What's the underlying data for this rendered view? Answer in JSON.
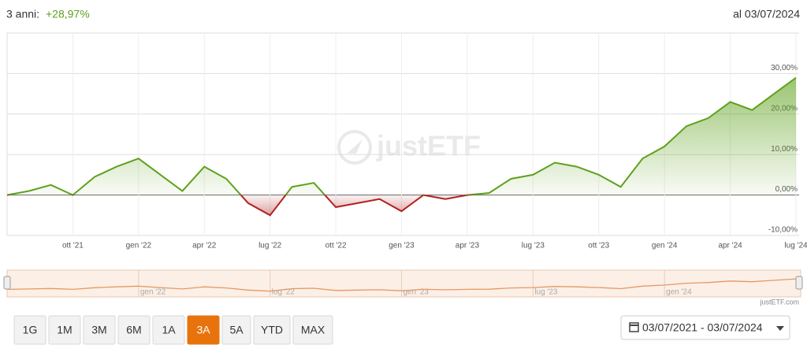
{
  "header": {
    "period_label": "3 anni:",
    "change": "+28,97%",
    "as_of": "al 03/07/2024"
  },
  "chart_data": {
    "type": "line",
    "watermark": "justETF",
    "x": [
      "2021-07",
      "2021-08",
      "2021-09",
      "2021-10",
      "2021-11",
      "2021-12",
      "2022-01",
      "2022-02",
      "2022-03",
      "2022-04",
      "2022-05",
      "2022-06",
      "2022-07",
      "2022-08",
      "2022-09",
      "2022-10",
      "2022-11",
      "2022-12",
      "2023-01",
      "2023-02",
      "2023-03",
      "2023-04",
      "2023-05",
      "2023-06",
      "2023-07",
      "2023-08",
      "2023-09",
      "2023-10",
      "2023-11",
      "2023-12",
      "2024-01",
      "2024-02",
      "2024-03",
      "2024-04",
      "2024-05",
      "2024-06",
      "2024-07"
    ],
    "values": [
      0,
      1,
      2.5,
      0,
      4.5,
      7,
      9,
      5,
      1,
      7,
      4,
      -2,
      -5,
      2,
      3,
      -3,
      -2,
      -1,
      -4,
      0,
      -1,
      0,
      0.5,
      4,
      5,
      8,
      7,
      5,
      2,
      9,
      12,
      17,
      19,
      23,
      21,
      25,
      28.97
    ],
    "color": "#5ea11c",
    "negative_color": "#b22222",
    "xlim": [
      "2021-07",
      "2024-07"
    ],
    "xticks": [
      {
        "value": "2021-10",
        "label": "ott '21"
      },
      {
        "value": "2022-01",
        "label": "gen '22"
      },
      {
        "value": "2022-04",
        "label": "apr '22"
      },
      {
        "value": "2022-07",
        "label": "lug '22"
      },
      {
        "value": "2022-10",
        "label": "ott '22"
      },
      {
        "value": "2023-01",
        "label": "gen '23"
      },
      {
        "value": "2023-04",
        "label": "apr '23"
      },
      {
        "value": "2023-07",
        "label": "lug '23"
      },
      {
        "value": "2023-10",
        "label": "ott '23"
      },
      {
        "value": "2024-01",
        "label": "gen '24"
      },
      {
        "value": "2024-04",
        "label": "apr '24"
      },
      {
        "value": "2024-07",
        "label": "lug '24"
      }
    ],
    "ylim": [
      -10,
      40
    ],
    "yticks": [
      {
        "value": -10,
        "label": "-10,00%"
      },
      {
        "value": 0,
        "label": "0,00%"
      },
      {
        "value": 10,
        "label": "10,00%"
      },
      {
        "value": 20,
        "label": "20,00%"
      },
      {
        "value": 30,
        "label": "30,00%"
      }
    ],
    "grid": true
  },
  "navigator": {
    "color": "#e39a66",
    "credit": "justETF.com",
    "xticks": [
      {
        "value": "2022-01",
        "label": "gen '22"
      },
      {
        "value": "2022-07",
        "label": "lug '22"
      },
      {
        "value": "2023-01",
        "label": "gen '23"
      },
      {
        "value": "2023-07",
        "label": "lug '23"
      },
      {
        "value": "2024-01",
        "label": "gen '24"
      }
    ]
  },
  "range_buttons": [
    "1G",
    "1M",
    "3M",
    "6M",
    "1A",
    "3A",
    "5A",
    "YTD",
    "MAX"
  ],
  "active_button": 5,
  "date_range": "03/07/2021 - 03/07/2024"
}
